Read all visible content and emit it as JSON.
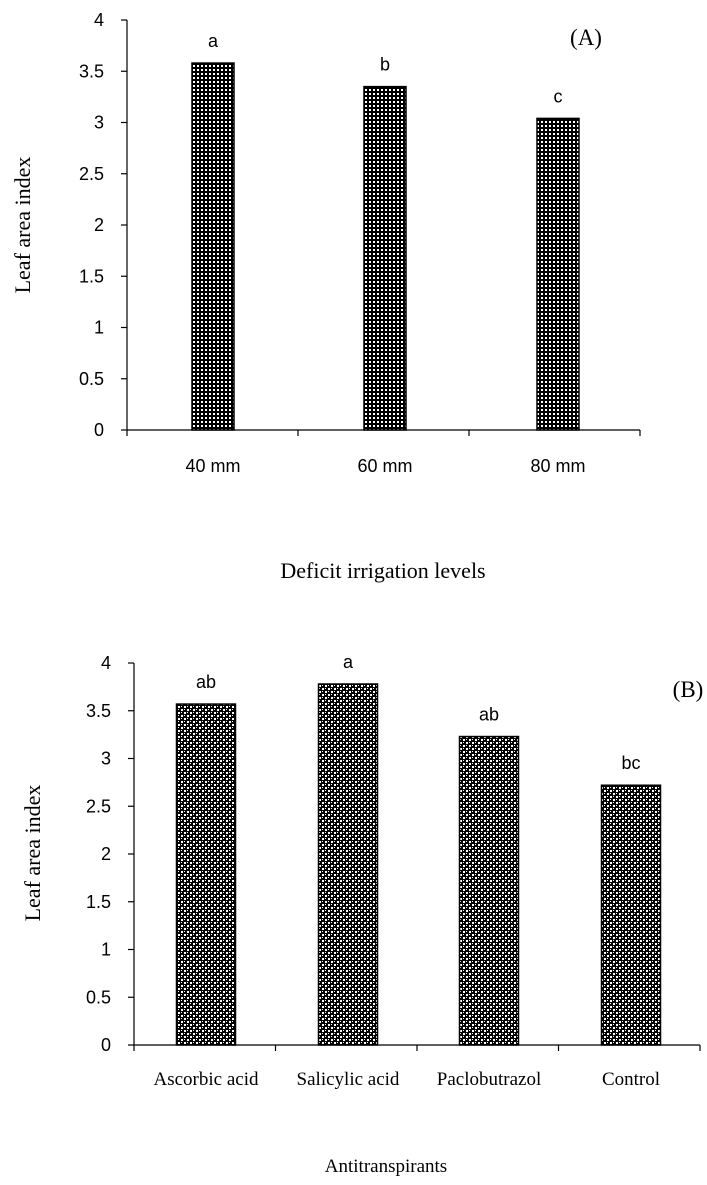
{
  "chart_data": [
    {
      "type": "bar",
      "panel_label": "(A)",
      "categories": [
        "40 mm",
        "60 mm",
        "80 mm"
      ],
      "values": [
        3.58,
        3.35,
        3.04
      ],
      "significance_letters": [
        "a",
        "b",
        "c"
      ],
      "xlabel": "Deficit irrigation levels",
      "ylabel": "Leaf area index",
      "ylim": [
        0,
        4
      ],
      "yticks": [
        "0",
        "0.5",
        "1",
        "1.5",
        "2",
        "2.5",
        "3",
        "3.5",
        "4"
      ],
      "grid": false,
      "bar_pattern": "black with white dot grid"
    },
    {
      "type": "bar",
      "panel_label": "(B)",
      "categories": [
        "Ascorbic acid",
        "Salicylic acid",
        "Paclobutrazol",
        "Control"
      ],
      "values": [
        3.57,
        3.78,
        3.23,
        2.72
      ],
      "significance_letters": [
        "ab",
        "a",
        "ab",
        "bc"
      ],
      "xlabel": "Antitranspirants",
      "ylabel": "Leaf area index",
      "ylim": [
        0,
        4
      ],
      "yticks": [
        "0",
        "0.5",
        "1",
        "1.5",
        "2",
        "2.5",
        "3",
        "3.5",
        "4"
      ],
      "grid": false,
      "bar_pattern": "black with white crosshatch dots"
    }
  ]
}
